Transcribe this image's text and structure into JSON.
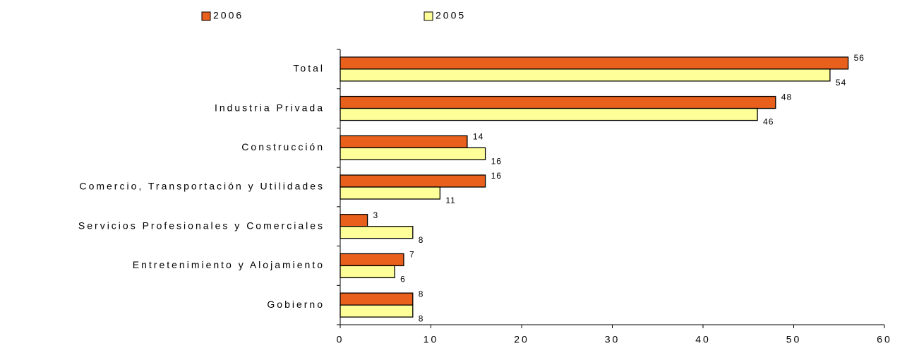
{
  "chart_data": {
    "type": "barh",
    "categories": [
      "Total",
      "Industria Privada",
      "Construcción",
      "Comercio, Transportación y Utilidades",
      "Servicios Profesionales y Comerciales",
      "Entretenimiento y Alojamiento",
      "Gobierno"
    ],
    "series": [
      {
        "name": "2006",
        "color": "#e8601c",
        "values": [
          56,
          48,
          14,
          16,
          3,
          7,
          8
        ]
      },
      {
        "name": "2005",
        "color": "#ffff99",
        "values": [
          54,
          46,
          16,
          11,
          8,
          6,
          8
        ]
      }
    ],
    "xlim": [
      0,
      60
    ],
    "xticks": [
      0,
      10,
      20,
      30,
      40,
      50,
      60
    ],
    "legend": "top"
  }
}
